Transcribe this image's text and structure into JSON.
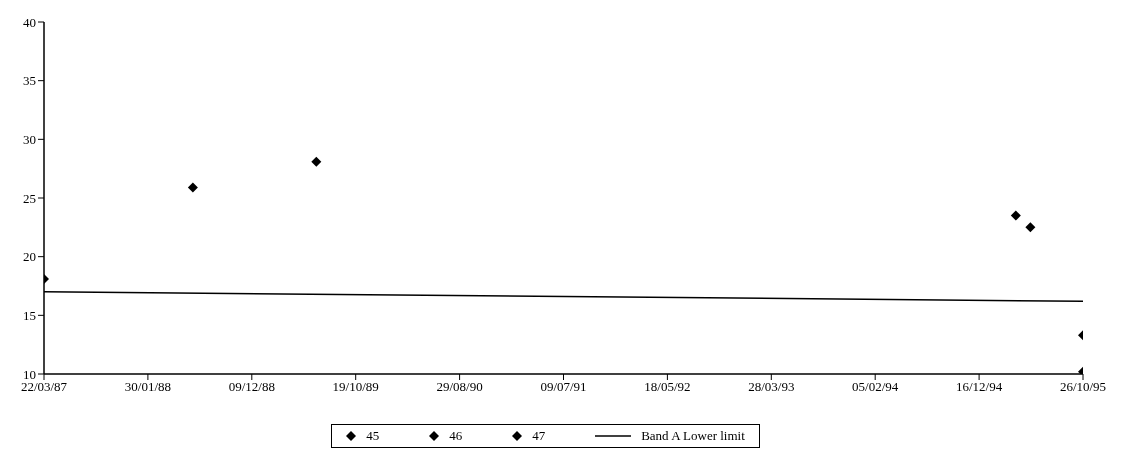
{
  "chart_data": {
    "type": "scatter",
    "marker": "diamond",
    "legend": "bottom",
    "grid": false,
    "xlim": [
      "1987-03-22",
      "1995-10-26"
    ],
    "xticks": [
      {
        "value": "1987-03-22",
        "label": "22/03/87"
      },
      {
        "value": "1988-01-30",
        "label": "30/01/88"
      },
      {
        "value": "1988-12-09",
        "label": "09/12/88"
      },
      {
        "value": "1989-10-19",
        "label": "19/10/89"
      },
      {
        "value": "1990-08-29",
        "label": "29/08/90"
      },
      {
        "value": "1991-07-09",
        "label": "09/07/91"
      },
      {
        "value": "1992-05-18",
        "label": "18/05/92"
      },
      {
        "value": "1993-03-28",
        "label": "28/03/93"
      },
      {
        "value": "1994-02-05",
        "label": "05/02/94"
      },
      {
        "value": "1994-12-16",
        "label": "16/12/94"
      },
      {
        "value": "1995-10-26",
        "label": "26/10/95"
      }
    ],
    "ylim": [
      10,
      40
    ],
    "yticks": [
      10,
      15,
      20,
      25,
      30,
      35,
      40
    ],
    "series": [
      {
        "name": "45",
        "color": "#000000",
        "x": [
          "1987-03-22",
          "1988-06-14",
          "1989-06-22"
        ],
        "values": [
          18.1,
          25.9,
          28.1
        ]
      },
      {
        "name": "46",
        "color": "#000000",
        "x": [
          "1995-04-06",
          "1995-05-20"
        ],
        "values": [
          23.5,
          22.5
        ]
      },
      {
        "name": "47",
        "color": "#000000",
        "x": [
          "1995-10-26",
          "1995-10-26"
        ],
        "values": [
          13.3,
          10.2
        ]
      },
      {
        "name": "Band A Lower limit",
        "type": "line",
        "marker": "none",
        "line_style": "solid",
        "color": "#000000",
        "x": [
          "1987-03-22",
          "1995-10-26"
        ],
        "values": [
          17.0,
          16.2
        ]
      }
    ]
  }
}
